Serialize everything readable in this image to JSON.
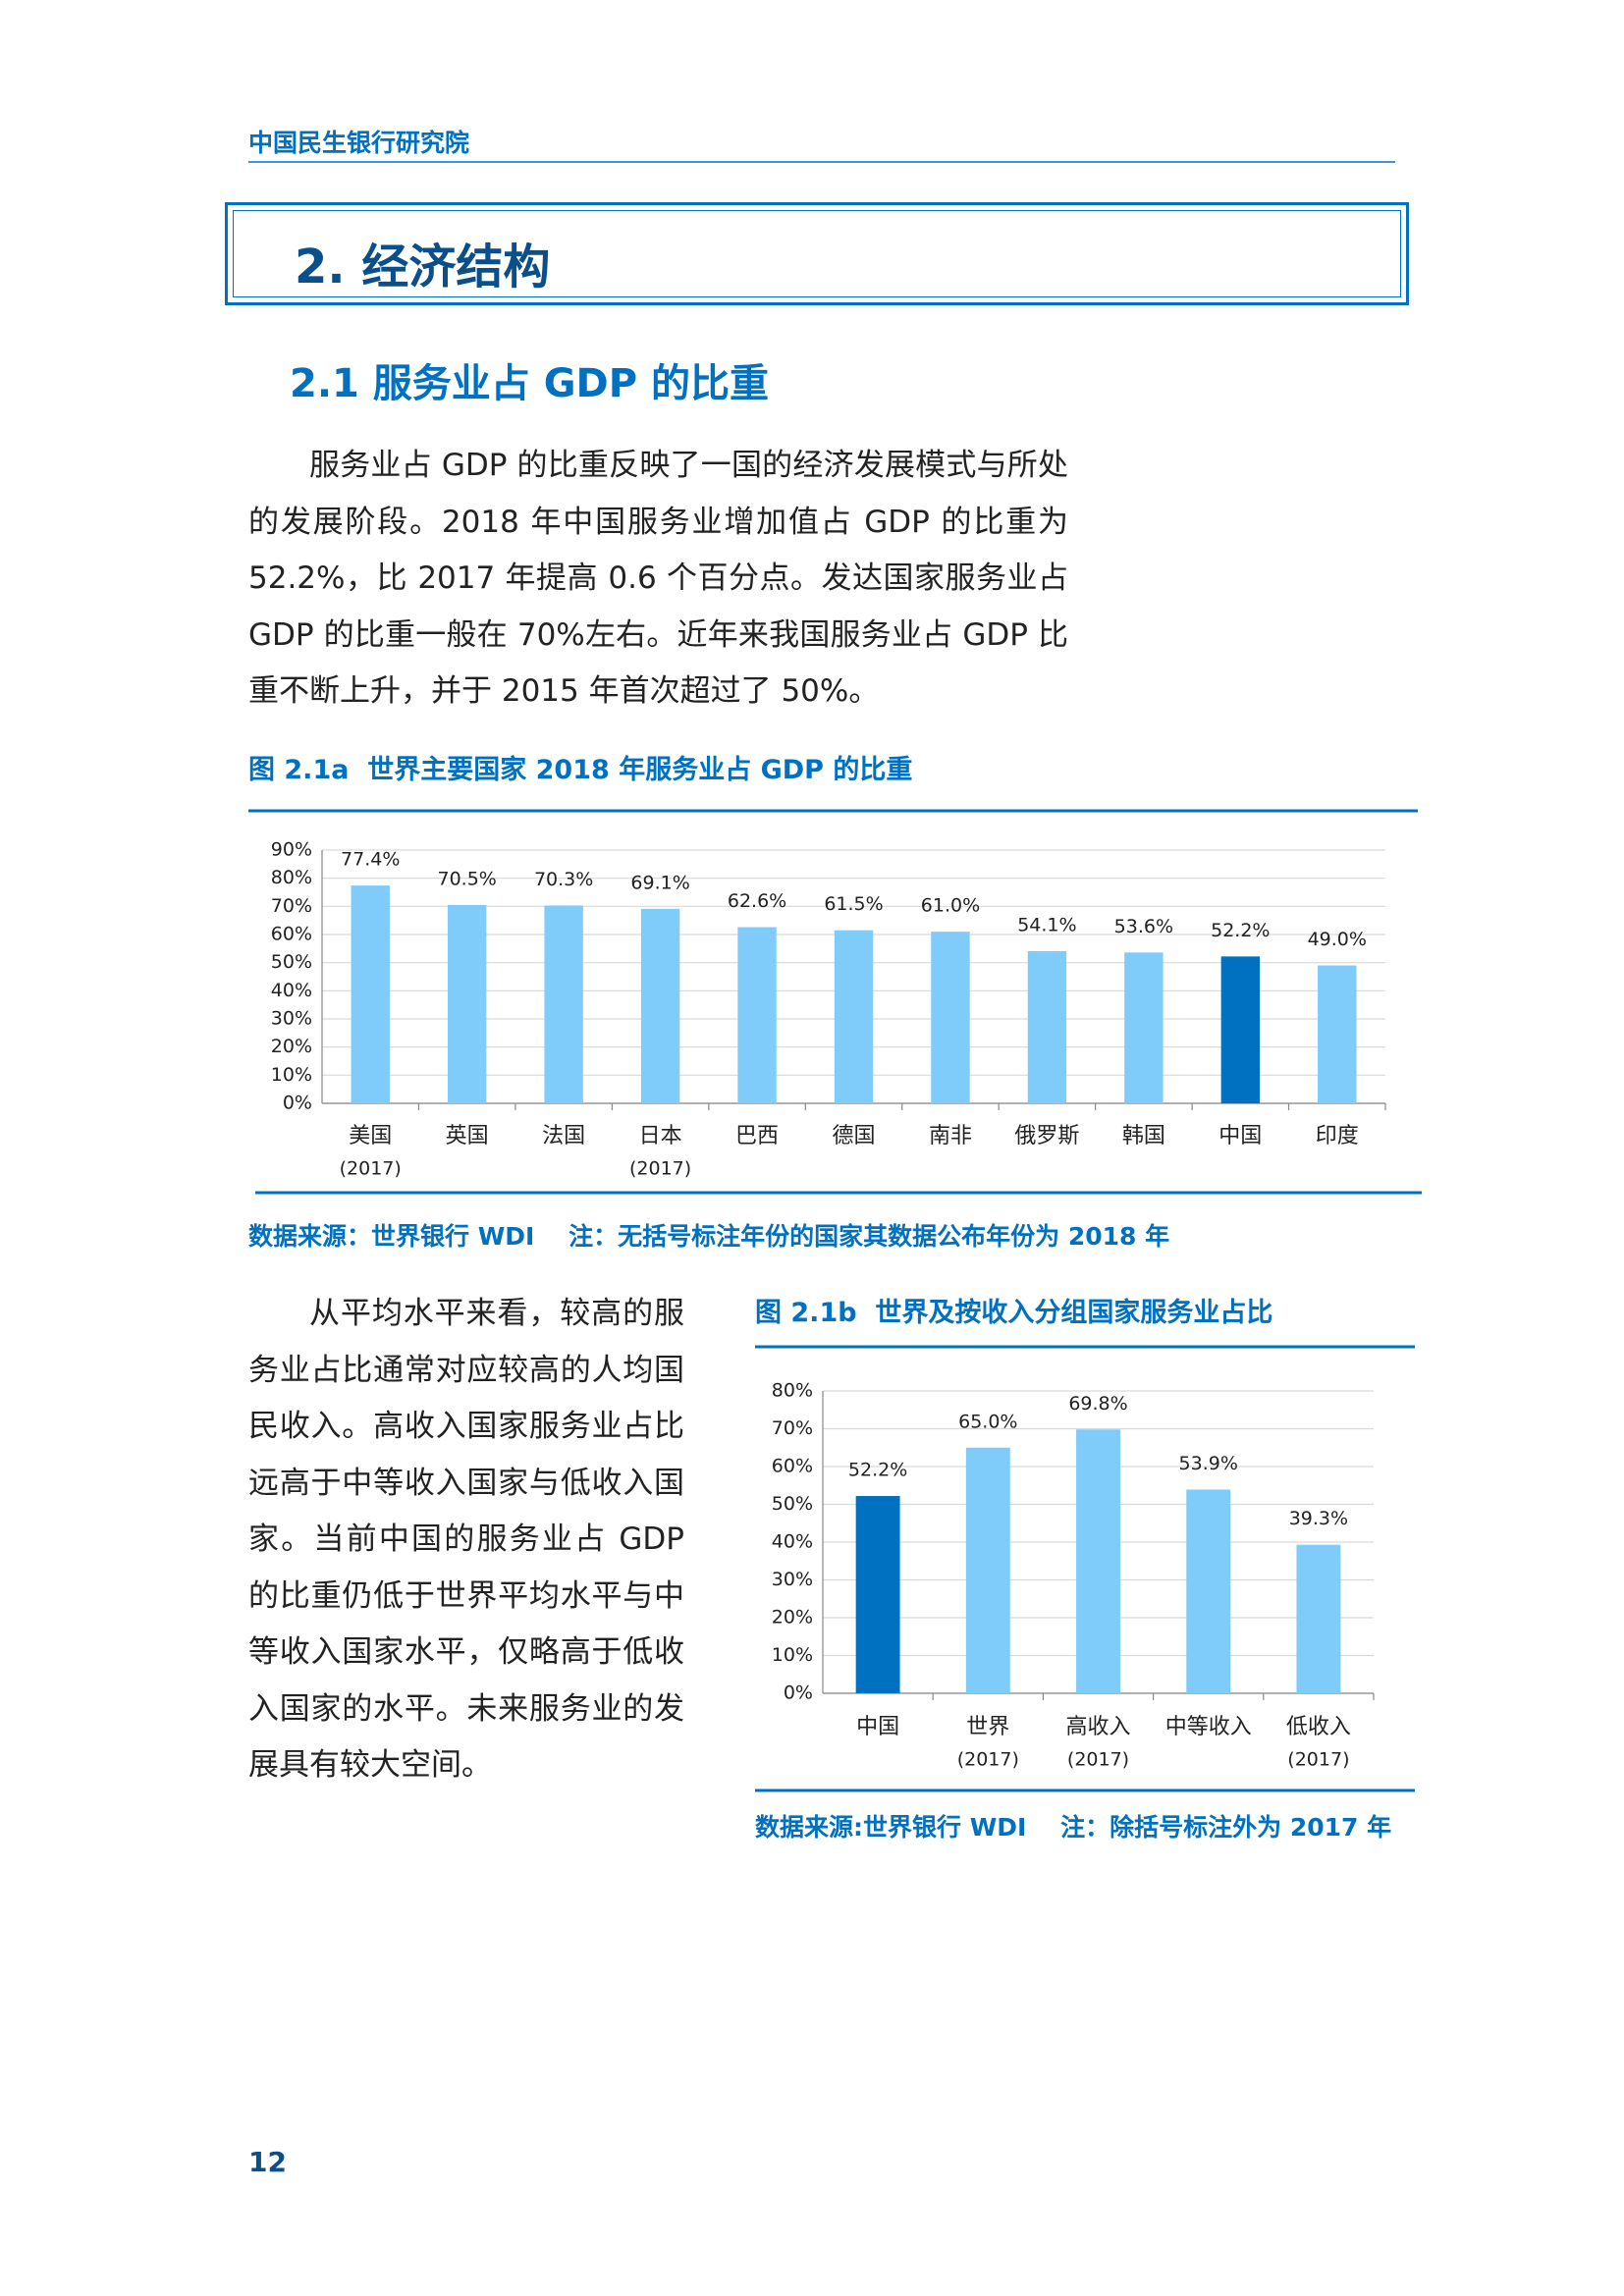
{
  "header": {
    "org": "中国民生银行研究院"
  },
  "section": {
    "title": "2. 经济结构"
  },
  "subsection": {
    "title": "2.1 服务业占 GDP 的比重"
  },
  "paragraphs": [
    "服务业占 GDP 的比重反映了一国的经济发展模式与所处的发展阶段。2018 年中国服务业增加值占 GDP 的比重为 52.2%，比 2017 年提高 0.6 个百分点。发达国家服务业占 GDP 的比重一般在 70%左右。近年来我国服务业占 GDP 比重不断上升，并于 2015 年首次超过了 50%。",
    "从平均水平来看，较高的服务业占比通常对应较高的人均国民收入。高收入国家服务业占比远高于中等收入国家与低收入国家。当前中国的服务业占 GDP 的比重仍低于世界平均水平与中等收入国家水平，仅略高于低收入国家的水平。未来服务业的发展具有较大空间。"
  ],
  "chart_data": [
    {
      "type": "bar",
      "title": "图 2.1a  世界主要国家 2018 年服务业占 GDP 的比重",
      "categories": [
        "美国",
        "英国",
        "法国",
        "日本",
        "巴西",
        "德国",
        "南非",
        "俄罗斯",
        "韩国",
        "中国",
        "印度"
      ],
      "category_notes": [
        "(2017)",
        null,
        null,
        "(2017)",
        null,
        null,
        null,
        null,
        null,
        null,
        null
      ],
      "values": [
        77.4,
        70.5,
        70.3,
        69.1,
        62.6,
        61.5,
        61.0,
        54.1,
        53.6,
        52.2,
        49.0
      ],
      "value_labels": [
        "77.4%",
        "70.5%",
        "70.3%",
        "69.1%",
        "62.6%",
        "61.5%",
        "61.0%",
        "54.1%",
        "53.6%",
        "52.2%",
        "49.0%"
      ],
      "colors": [
        "#7fcbf9",
        "#7fcbf9",
        "#7fcbf9",
        "#7fcbf9",
        "#7fcbf9",
        "#7fcbf9",
        "#7fcbf9",
        "#7fcbf9",
        "#7fcbf9",
        "#0070c0",
        "#7fcbf9"
      ],
      "ylim": [
        0,
        90
      ],
      "yticks": [
        {
          "value": 0,
          "label": "0%"
        },
        {
          "value": 10,
          "label": "10%"
        },
        {
          "value": 20,
          "label": "20%"
        },
        {
          "value": 30,
          "label": "30%"
        },
        {
          "value": 40,
          "label": "40%"
        },
        {
          "value": 50,
          "label": "50%"
        },
        {
          "value": 60,
          "label": "60%"
        },
        {
          "value": 70,
          "label": "70%"
        },
        {
          "value": 80,
          "label": "80%"
        },
        {
          "value": 90,
          "label": "90%"
        }
      ],
      "grid": true,
      "source": "数据来源：世界银行 WDI    注：无括号标注年份的国家其数据公布年份为 2018 年"
    },
    {
      "type": "bar",
      "title": "图 2.1b  世界及按收入分组国家服务业占比",
      "categories": [
        "中国",
        "世界",
        "高收入",
        "中等收入",
        "低收入"
      ],
      "category_notes": [
        null,
        "(2017)",
        "(2017)",
        null,
        "(2017)"
      ],
      "values": [
        52.2,
        65.0,
        69.8,
        53.9,
        39.3
      ],
      "value_labels": [
        "52.2%",
        "65.0%",
        "69.8%",
        "53.9%",
        "39.3%"
      ],
      "colors": [
        "#0070c0",
        "#7fcbf9",
        "#7fcbf9",
        "#7fcbf9",
        "#7fcbf9"
      ],
      "ylim": [
        0,
        80
      ],
      "yticks": [
        {
          "value": 0,
          "label": "0%"
        },
        {
          "value": 10,
          "label": "10%"
        },
        {
          "value": 20,
          "label": "20%"
        },
        {
          "value": 30,
          "label": "30%"
        },
        {
          "value": 40,
          "label": "40%"
        },
        {
          "value": 50,
          "label": "50%"
        },
        {
          "value": 60,
          "label": "60%"
        },
        {
          "value": 70,
          "label": "70%"
        },
        {
          "value": 80,
          "label": "80%"
        }
      ],
      "grid": true,
      "source": "数据来源:世界银行 WDI    注：除括号标注外为 2017 年"
    }
  ],
  "footer": {
    "page": "12"
  }
}
